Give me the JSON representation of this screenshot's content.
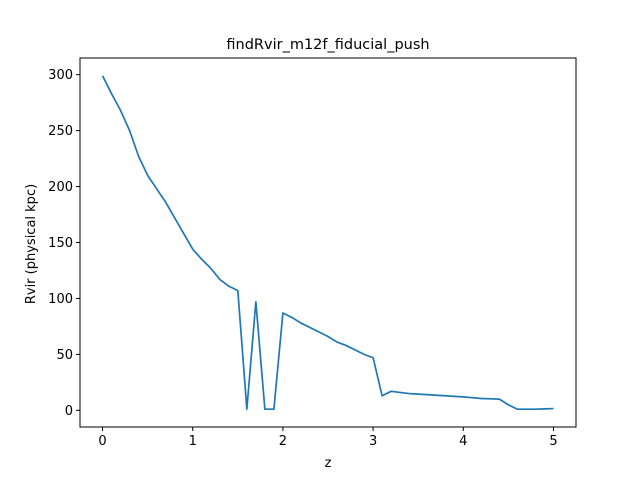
{
  "chart_data": {
    "type": "line",
    "title": "findRvir_m12f_fiducial_push",
    "xlabel": "z",
    "ylabel": "Rvir (physical kpc)",
    "xlim": [
      -0.25,
      5.25
    ],
    "ylim": [
      -14.9,
      314.9
    ],
    "xticks": [
      0,
      1,
      2,
      3,
      4,
      5
    ],
    "yticks": [
      0,
      50,
      100,
      150,
      200,
      250,
      300
    ],
    "grid": false,
    "legend": "none",
    "series": [
      {
        "color": "#1f77b4",
        "x": [
          0.0,
          0.1,
          0.2,
          0.3,
          0.4,
          0.5,
          0.6,
          0.7,
          0.8,
          0.9,
          1.0,
          1.1,
          1.2,
          1.3,
          1.4,
          1.5,
          1.6,
          1.7,
          1.8,
          1.9,
          2.0,
          2.1,
          2.2,
          2.3,
          2.4,
          2.5,
          2.6,
          2.7,
          2.8,
          2.9,
          3.0,
          3.1,
          3.2,
          3.3,
          3.4,
          3.5,
          3.6,
          3.7,
          3.8,
          3.9,
          4.0,
          4.1,
          4.2,
          4.3,
          4.4,
          4.5,
          4.6,
          4.7,
          4.8,
          4.9,
          5.0
        ],
        "y": [
          299,
          283,
          268,
          250,
          227,
          210,
          198,
          186,
          172,
          158,
          144,
          135,
          127,
          117,
          111,
          107,
          1,
          97,
          1,
          1,
          87,
          83,
          78,
          74,
          70,
          66,
          61,
          58,
          54,
          50,
          47,
          13,
          17,
          16,
          15,
          14.5,
          14,
          13.5,
          13,
          12.5,
          12,
          11.3,
          10.6,
          10.3,
          10,
          5,
          1,
          1,
          1,
          1.3,
          1.6
        ]
      }
    ]
  }
}
